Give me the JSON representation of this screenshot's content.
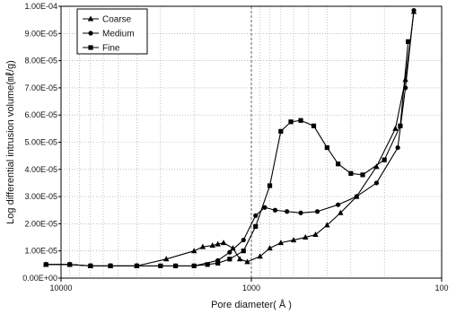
{
  "chart_data": {
    "type": "line",
    "xlabel": "Pore diameter( Å )",
    "ylabel": "Log differential intrusion volume(㎖/g)",
    "x_scale": "log",
    "x_reversed": true,
    "xlim": [
      10000,
      100
    ],
    "ylim": [
      0,
      0.0001
    ],
    "x_ticks": [
      10000,
      1000,
      100
    ],
    "x_tick_labels": [
      "10000",
      "1000",
      "100"
    ],
    "y_ticks": [
      0,
      1e-05,
      2e-05,
      3e-05,
      4e-05,
      5e-05,
      6e-05,
      7e-05,
      8e-05,
      9e-05,
      0.0001
    ],
    "y_tick_labels": [
      "0.00E+00",
      "1.00E-05",
      "2.00E-05",
      "3.00E-05",
      "4.00E-05",
      "5.00E-05",
      "6.00E-05",
      "7.00E-05",
      "8.00E-05",
      "9.00E-05",
      "1.00E-04"
    ],
    "grid": true,
    "legend_position": "top-left",
    "series": [
      {
        "name": "Coarse",
        "marker": "triangle",
        "x": [
          12000,
          9000,
          7000,
          5500,
          4000,
          2800,
          2000,
          1800,
          1600,
          1500,
          1400,
          1250,
          1150,
          1050,
          900,
          800,
          700,
          600,
          520,
          460,
          400,
          340,
          280,
          220,
          175,
          155,
          140
        ],
        "y": [
          5e-06,
          5e-06,
          4.5e-06,
          4.5e-06,
          4.5e-06,
          7e-06,
          1e-05,
          1.15e-05,
          1.2e-05,
          1.25e-05,
          1.3e-05,
          1.1e-05,
          7e-06,
          6e-06,
          8e-06,
          1.1e-05,
          1.3e-05,
          1.4e-05,
          1.5e-05,
          1.6e-05,
          1.95e-05,
          2.4e-05,
          3e-05,
          4.1e-05,
          5.5e-05,
          7.3e-05,
          9.8e-05
        ]
      },
      {
        "name": "Medium",
        "marker": "circle",
        "x": [
          12000,
          9000,
          7000,
          5500,
          4000,
          3000,
          2500,
          2000,
          1500,
          1300,
          1100,
          950,
          850,
          750,
          650,
          550,
          450,
          350,
          280,
          220,
          170,
          155,
          140
        ],
        "y": [
          5e-06,
          5e-06,
          4.5e-06,
          4.5e-06,
          4.5e-06,
          4.5e-06,
          4.5e-06,
          4.5e-06,
          6.5e-06,
          9.5e-06,
          1.4e-05,
          2.3e-05,
          2.6e-05,
          2.5e-05,
          2.45e-05,
          2.4e-05,
          2.45e-05,
          2.7e-05,
          3e-05,
          3.5e-05,
          4.8e-05,
          7e-05,
          9.85e-05
        ]
      },
      {
        "name": "Fine",
        "marker": "square",
        "x": [
          12000,
          9000,
          7000,
          5500,
          4000,
          3000,
          2500,
          2000,
          1700,
          1500,
          1300,
          1100,
          950,
          800,
          700,
          620,
          550,
          470,
          400,
          350,
          300,
          260,
          200,
          165,
          150
        ],
        "y": [
          5e-06,
          5e-06,
          4.5e-06,
          4.5e-06,
          4.5e-06,
          4.5e-06,
          4.5e-06,
          4.5e-06,
          5e-06,
          5.5e-06,
          7e-06,
          1e-05,
          1.9e-05,
          3.4e-05,
          5.4e-05,
          5.75e-05,
          5.8e-05,
          5.6e-05,
          4.8e-05,
          4.2e-05,
          3.85e-05,
          3.8e-05,
          4.35e-05,
          5.6e-05,
          8.7e-05
        ]
      }
    ]
  }
}
